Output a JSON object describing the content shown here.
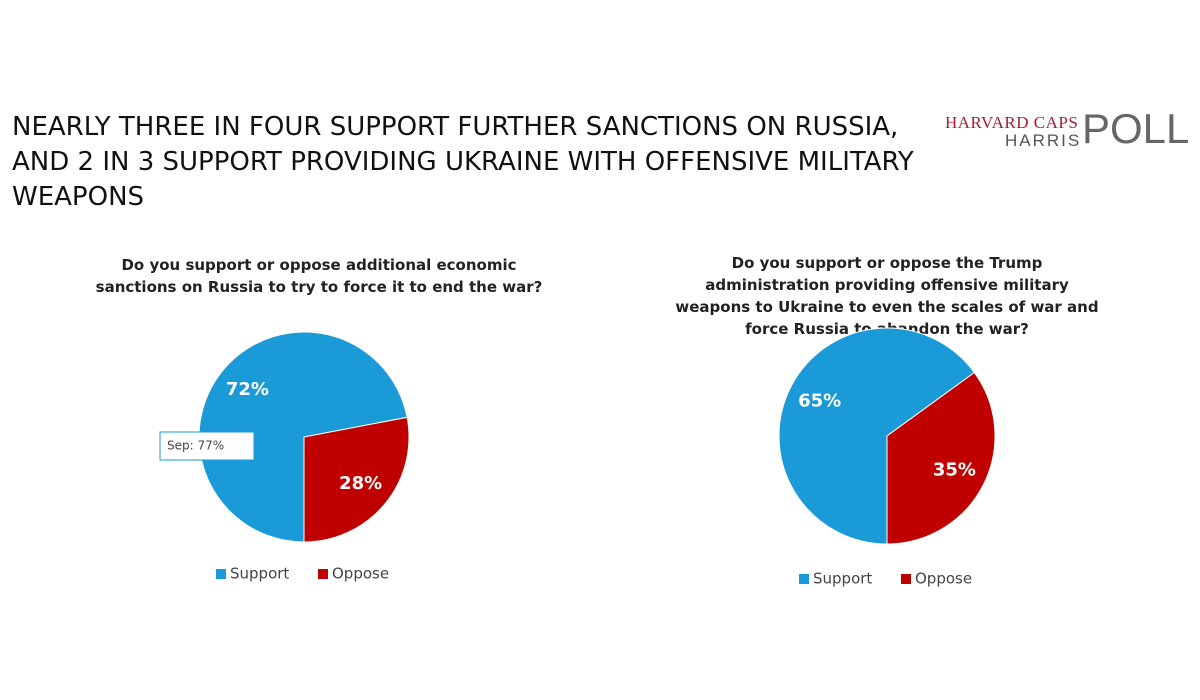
{
  "title": "NEARLY THREE IN FOUR SUPPORT FURTHER SANCTIONS ON RUSSIA, AND 2 IN 3 SUPPORT PROVIDING UKRAINE WITH OFFENSIVE MILITARY WEAPONS",
  "logo": {
    "line1": "HARVARD CAPS",
    "line2": "HARRIS",
    "mark": "POLL"
  },
  "chart_data": [
    {
      "type": "pie",
      "title": "Do you support or oppose additional economic sanctions on Russia to try to force it to end the war?",
      "categories": [
        "Support",
        "Oppose"
      ],
      "values": [
        72,
        28
      ],
      "value_labels": [
        "72%",
        "28%"
      ],
      "colors": [
        "#1a9ad6",
        "#c00000"
      ],
      "annotation": "Sep: 77%"
    },
    {
      "type": "pie",
      "title": "Do you support or oppose the Trump administration providing offensive military weapons to Ukraine to even the scales of war and force Russia to abandon the war?",
      "categories": [
        "Support",
        "Oppose"
      ],
      "values": [
        65,
        35
      ],
      "value_labels": [
        "65%",
        "35%"
      ],
      "colors": [
        "#1a9ad6",
        "#c00000"
      ]
    }
  ]
}
